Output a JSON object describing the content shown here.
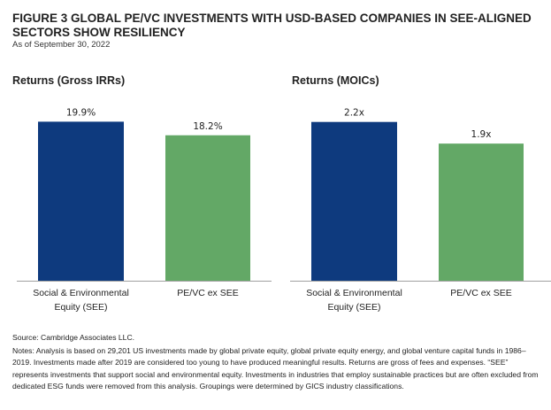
{
  "figure": {
    "title": "FIGURE 3   GLOBAL PE/VC INVESTMENTS WITH USD-BASED COMPANIES IN SEE-ALIGNED SECTORS SHOW RESILIENCY",
    "subtitle": "As of September 30, 2022",
    "source": "Source: Cambridge Associates LLC.",
    "notes": "Notes: Analysis is based on 29,201 US investments made by global private equity, global private equity energy, and global venture capital funds in 1986–2019. Investments made after 2019 are considered too young to have produced meaningful results. Returns are gross of fees and expenses. “SEE” represents investments that support social and environmental equity. Investments in industries that employ sustainable practices but are often excluded from dedicated ESG funds were removed from this analysis. Groupings were determined by GICS industry classifications."
  },
  "colors": {
    "see": "#0e3a7e",
    "ex_see": "#63a866",
    "axis": "#a0a0a0"
  },
  "chart_data": [
    {
      "type": "bar",
      "title": "Returns (Gross IRRs)",
      "categories": [
        "Social & Environmental Equity (SEE)",
        "PE/VC ex SEE"
      ],
      "category_lines": [
        [
          "Social & Environmental",
          "Equity (SEE)"
        ],
        [
          "PE/VC ex SEE"
        ]
      ],
      "values": [
        19.9,
        18.2
      ],
      "labels": [
        "19.9%",
        "18.2%"
      ],
      "unit": "%",
      "xlabel": "",
      "ylabel": "",
      "ylim": [
        0,
        20.5
      ],
      "grid": false,
      "legend": "none"
    },
    {
      "type": "bar",
      "title": "Returns (MOICs)",
      "categories": [
        "Social & Environmental Equity (SEE)",
        "PE/VC ex SEE"
      ],
      "category_lines": [
        [
          "Social & Environmental",
          "Equity (SEE)"
        ],
        [
          "PE/VC ex SEE"
        ]
      ],
      "values": [
        2.2,
        1.9
      ],
      "labels": [
        "2.2x",
        "1.9x"
      ],
      "unit": "x",
      "xlabel": "",
      "ylabel": "",
      "ylim": [
        0,
        2.27
      ],
      "grid": false,
      "legend": "none"
    }
  ]
}
